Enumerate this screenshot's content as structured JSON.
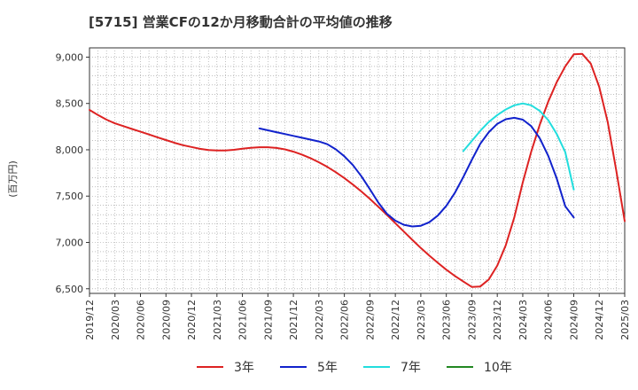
{
  "chart_data": {
    "type": "line",
    "title": "[5715]  営業CFの12か月移動合計の平均値の推移",
    "ylabel": "(百万円)",
    "xlabel": "",
    "ylim": [
      6450,
      9100
    ],
    "yticks": [
      6500,
      7000,
      7500,
      8000,
      8500,
      9000
    ],
    "ytick_labels": [
      "6,500",
      "7,000",
      "7,500",
      "8,000",
      "8,500",
      "9,000"
    ],
    "xticks": [
      "2019/12",
      "2020/03",
      "2020/06",
      "2020/09",
      "2020/12",
      "2021/03",
      "2021/06",
      "2021/09",
      "2021/12",
      "2022/03",
      "2022/06",
      "2022/09",
      "2022/12",
      "2023/03",
      "2023/06",
      "2023/09",
      "2023/12",
      "2024/03",
      "2024/06",
      "2024/09",
      "2024/12",
      "2025/03"
    ],
    "grid": true,
    "legend_position": "bottom",
    "series": [
      {
        "name": "3年",
        "color": "#dd2222",
        "points": [
          [
            "2019/12",
            8430
          ],
          [
            "2020/01",
            8375
          ],
          [
            "2020/02",
            8325
          ],
          [
            "2020/03",
            8285
          ],
          [
            "2020/04",
            8255
          ],
          [
            "2020/05",
            8225
          ],
          [
            "2020/06",
            8195
          ],
          [
            "2020/07",
            8165
          ],
          [
            "2020/08",
            8135
          ],
          [
            "2020/09",
            8105
          ],
          [
            "2020/10",
            8075
          ],
          [
            "2020/11",
            8050
          ],
          [
            "2020/12",
            8030
          ],
          [
            "2021/01",
            8010
          ],
          [
            "2021/02",
            7997
          ],
          [
            "2021/03",
            7992
          ],
          [
            "2021/04",
            7993
          ],
          [
            "2021/05",
            8000
          ],
          [
            "2021/06",
            8012
          ],
          [
            "2021/07",
            8022
          ],
          [
            "2021/08",
            8028
          ],
          [
            "2021/09",
            8028
          ],
          [
            "2021/10",
            8020
          ],
          [
            "2021/11",
            8005
          ],
          [
            "2021/12",
            7980
          ],
          [
            "2022/01",
            7948
          ],
          [
            "2022/02",
            7910
          ],
          [
            "2022/03",
            7865
          ],
          [
            "2022/04",
            7815
          ],
          [
            "2022/05",
            7758
          ],
          [
            "2022/06",
            7695
          ],
          [
            "2022/07",
            7625
          ],
          [
            "2022/08",
            7550
          ],
          [
            "2022/09",
            7470
          ],
          [
            "2022/10",
            7385
          ],
          [
            "2022/11",
            7298
          ],
          [
            "2022/12",
            7208
          ],
          [
            "2023/01",
            7118
          ],
          [
            "2023/02",
            7028
          ],
          [
            "2023/03",
            6940
          ],
          [
            "2023/04",
            6858
          ],
          [
            "2023/05",
            6780
          ],
          [
            "2023/06",
            6705
          ],
          [
            "2023/07",
            6638
          ],
          [
            "2023/08",
            6578
          ],
          [
            "2023/09",
            6520
          ],
          [
            "2023/10",
            6525
          ],
          [
            "2023/11",
            6600
          ],
          [
            "2023/12",
            6750
          ],
          [
            "2024/01",
            6970
          ],
          [
            "2024/02",
            7270
          ],
          [
            "2024/03",
            7650
          ],
          [
            "2024/04",
            7980
          ],
          [
            "2024/05",
            8270
          ],
          [
            "2024/06",
            8520
          ],
          [
            "2024/07",
            8730
          ],
          [
            "2024/08",
            8900
          ],
          [
            "2024/09",
            9030
          ],
          [
            "2024/10",
            9035
          ],
          [
            "2024/11",
            8930
          ],
          [
            "2024/12",
            8680
          ],
          [
            "2025/01",
            8300
          ],
          [
            "2025/02",
            7780
          ],
          [
            "2025/03",
            7230
          ]
        ]
      },
      {
        "name": "5年",
        "color": "#1122cc",
        "points": [
          [
            "2021/08",
            8230
          ],
          [
            "2021/09",
            8210
          ],
          [
            "2021/10",
            8190
          ],
          [
            "2021/11",
            8170
          ],
          [
            "2021/12",
            8150
          ],
          [
            "2022/01",
            8130
          ],
          [
            "2022/02",
            8110
          ],
          [
            "2022/03",
            8090
          ],
          [
            "2022/04",
            8060
          ],
          [
            "2022/05",
            8005
          ],
          [
            "2022/06",
            7930
          ],
          [
            "2022/07",
            7835
          ],
          [
            "2022/08",
            7715
          ],
          [
            "2022/09",
            7575
          ],
          [
            "2022/10",
            7430
          ],
          [
            "2022/11",
            7310
          ],
          [
            "2022/12",
            7235
          ],
          [
            "2023/01",
            7190
          ],
          [
            "2023/02",
            7172
          ],
          [
            "2023/03",
            7180
          ],
          [
            "2023/04",
            7218
          ],
          [
            "2023/05",
            7290
          ],
          [
            "2023/06",
            7395
          ],
          [
            "2023/07",
            7535
          ],
          [
            "2023/08",
            7705
          ],
          [
            "2023/09",
            7890
          ],
          [
            "2023/10",
            8065
          ],
          [
            "2023/11",
            8190
          ],
          [
            "2023/12",
            8280
          ],
          [
            "2024/01",
            8330
          ],
          [
            "2024/02",
            8345
          ],
          [
            "2024/03",
            8325
          ],
          [
            "2024/04",
            8255
          ],
          [
            "2024/05",
            8125
          ],
          [
            "2024/06",
            7935
          ],
          [
            "2024/07",
            7690
          ],
          [
            "2024/08",
            7390
          ],
          [
            "2024/09",
            7270
          ]
        ]
      },
      {
        "name": "7年",
        "color": "#22dddd",
        "points": [
          [
            "2023/08",
            7985
          ],
          [
            "2023/09",
            8095
          ],
          [
            "2023/10",
            8205
          ],
          [
            "2023/11",
            8300
          ],
          [
            "2023/12",
            8375
          ],
          [
            "2024/01",
            8435
          ],
          [
            "2024/02",
            8480
          ],
          [
            "2024/03",
            8500
          ],
          [
            "2024/04",
            8480
          ],
          [
            "2024/05",
            8420
          ],
          [
            "2024/06",
            8320
          ],
          [
            "2024/07",
            8170
          ],
          [
            "2024/08",
            7975
          ],
          [
            "2024/09",
            7570
          ]
        ]
      },
      {
        "name": "10年",
        "color": "#228822",
        "points": []
      }
    ]
  }
}
